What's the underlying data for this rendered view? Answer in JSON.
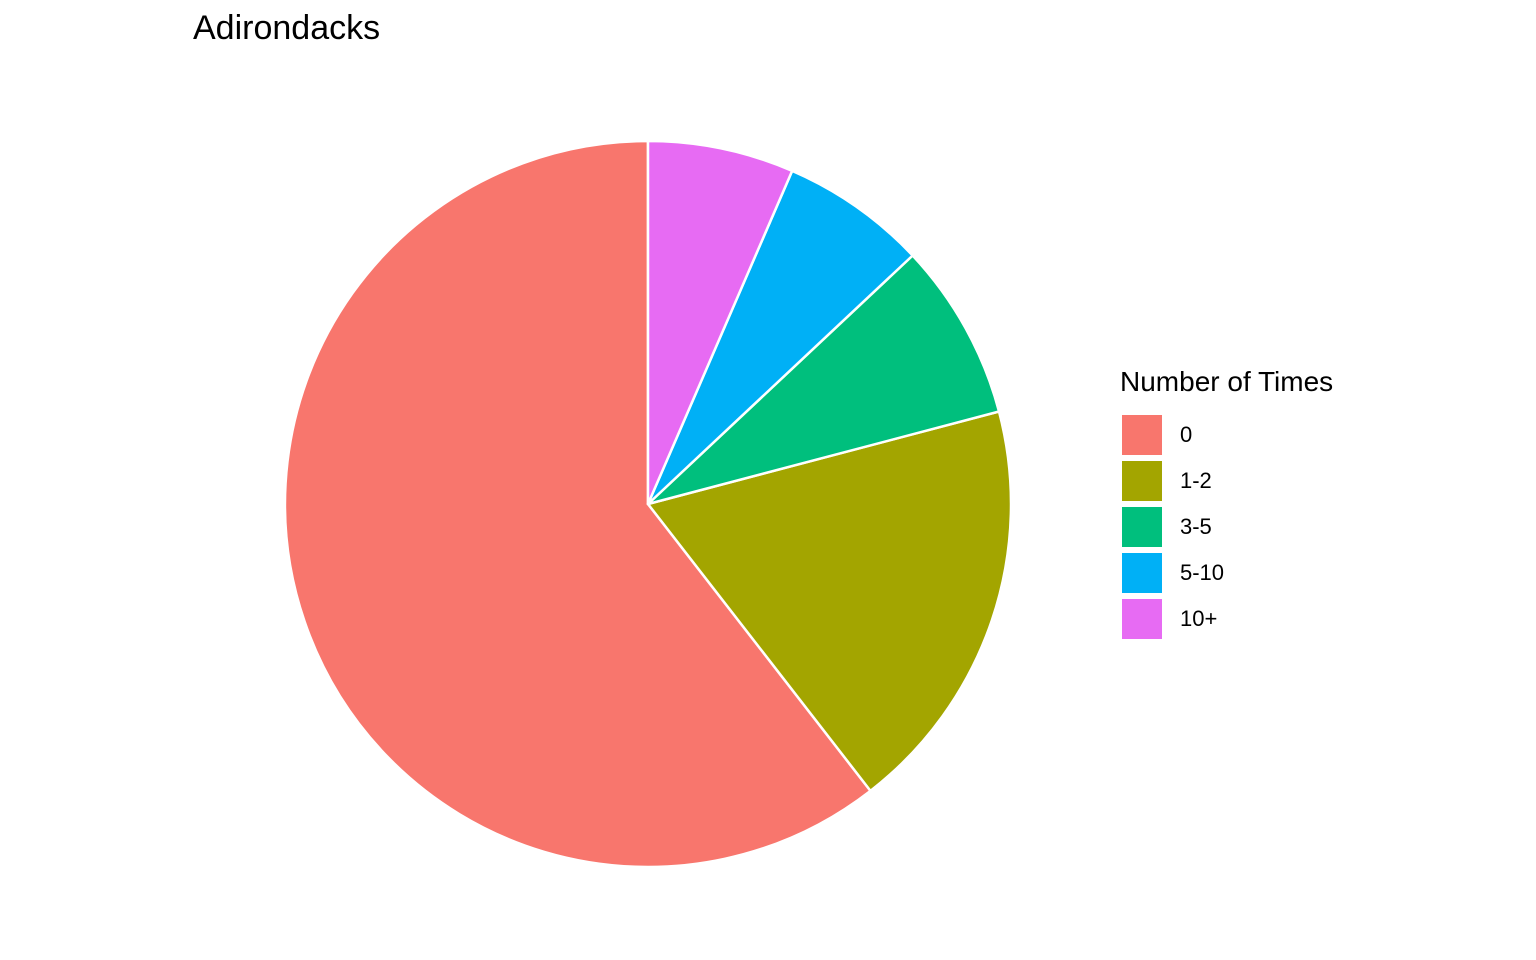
{
  "chart_data": {
    "type": "pie",
    "title": "Adirondacks",
    "legend": {
      "title": "Number of Times",
      "placement": "right"
    },
    "slices": [
      {
        "label": "0",
        "value": 60.5,
        "color": "#F8766D"
      },
      {
        "label": "1-2",
        "value": 18.6,
        "color": "#A3A500"
      },
      {
        "label": "3-5",
        "value": 7.9,
        "color": "#00BF7D"
      },
      {
        "label": "5-10",
        "value": 6.5,
        "color": "#00B0F6"
      },
      {
        "label": "10+",
        "value": 6.5,
        "color": "#E76BF3"
      }
    ],
    "direction": "counter-clockwise",
    "start": "12 o'clock",
    "slice_border_color": "#FFFFFF"
  }
}
